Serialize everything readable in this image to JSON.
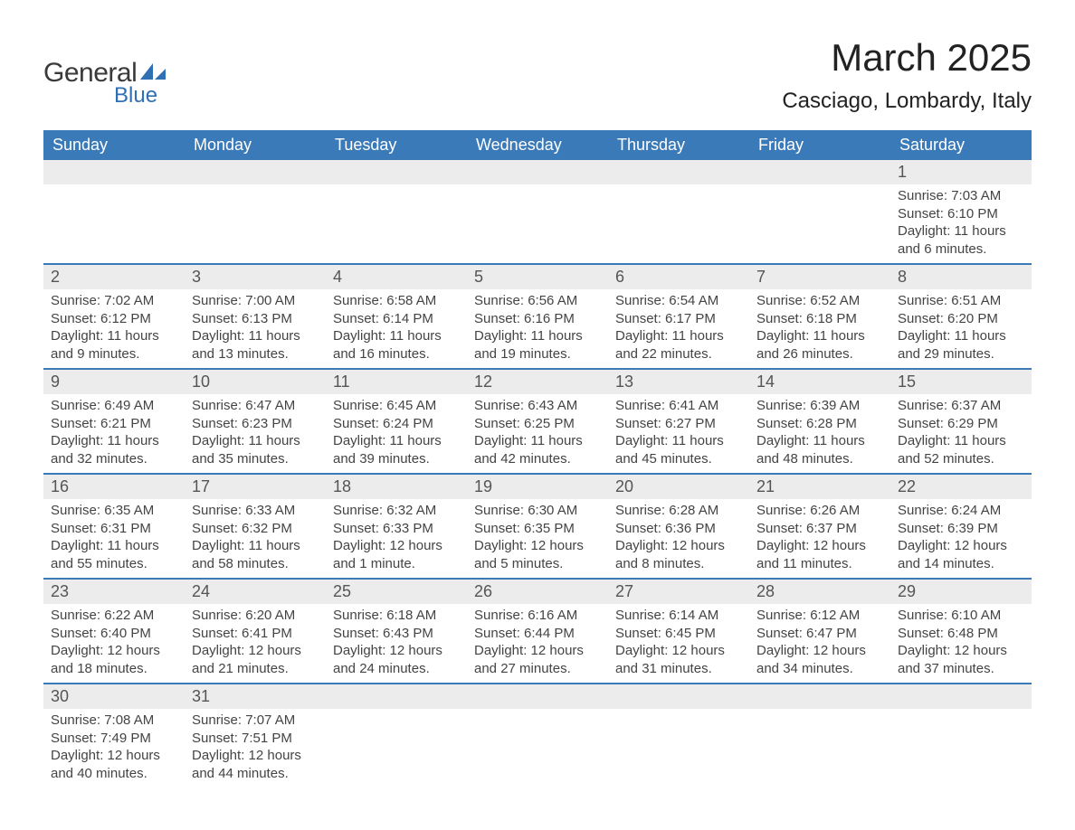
{
  "brand": {
    "line1": "General",
    "line2": "Blue",
    "accent_color": "#2f6fb3"
  },
  "title": "March 2025",
  "location": "Casciago, Lombardy, Italy",
  "header_bg": "#3b7ab8",
  "header_fg": "#ffffff",
  "stripe_bg": "#ececec",
  "border_color": "#3b7ab8",
  "text_color": "#444444",
  "fontsize_title": 42,
  "fontsize_location": 24,
  "fontsize_daynum": 18,
  "fontsize_body": 15,
  "day_names": [
    "Sunday",
    "Monday",
    "Tuesday",
    "Wednesday",
    "Thursday",
    "Friday",
    "Saturday"
  ],
  "weeks": [
    [
      null,
      null,
      null,
      null,
      null,
      null,
      {
        "n": "1",
        "sr": "7:03 AM",
        "ss": "6:10 PM",
        "dl": "11 hours and 6 minutes."
      }
    ],
    [
      {
        "n": "2",
        "sr": "7:02 AM",
        "ss": "6:12 PM",
        "dl": "11 hours and 9 minutes."
      },
      {
        "n": "3",
        "sr": "7:00 AM",
        "ss": "6:13 PM",
        "dl": "11 hours and 13 minutes."
      },
      {
        "n": "4",
        "sr": "6:58 AM",
        "ss": "6:14 PM",
        "dl": "11 hours and 16 minutes."
      },
      {
        "n": "5",
        "sr": "6:56 AM",
        "ss": "6:16 PM",
        "dl": "11 hours and 19 minutes."
      },
      {
        "n": "6",
        "sr": "6:54 AM",
        "ss": "6:17 PM",
        "dl": "11 hours and 22 minutes."
      },
      {
        "n": "7",
        "sr": "6:52 AM",
        "ss": "6:18 PM",
        "dl": "11 hours and 26 minutes."
      },
      {
        "n": "8",
        "sr": "6:51 AM",
        "ss": "6:20 PM",
        "dl": "11 hours and 29 minutes."
      }
    ],
    [
      {
        "n": "9",
        "sr": "6:49 AM",
        "ss": "6:21 PM",
        "dl": "11 hours and 32 minutes."
      },
      {
        "n": "10",
        "sr": "6:47 AM",
        "ss": "6:23 PM",
        "dl": "11 hours and 35 minutes."
      },
      {
        "n": "11",
        "sr": "6:45 AM",
        "ss": "6:24 PM",
        "dl": "11 hours and 39 minutes."
      },
      {
        "n": "12",
        "sr": "6:43 AM",
        "ss": "6:25 PM",
        "dl": "11 hours and 42 minutes."
      },
      {
        "n": "13",
        "sr": "6:41 AM",
        "ss": "6:27 PM",
        "dl": "11 hours and 45 minutes."
      },
      {
        "n": "14",
        "sr": "6:39 AM",
        "ss": "6:28 PM",
        "dl": "11 hours and 48 minutes."
      },
      {
        "n": "15",
        "sr": "6:37 AM",
        "ss": "6:29 PM",
        "dl": "11 hours and 52 minutes."
      }
    ],
    [
      {
        "n": "16",
        "sr": "6:35 AM",
        "ss": "6:31 PM",
        "dl": "11 hours and 55 minutes."
      },
      {
        "n": "17",
        "sr": "6:33 AM",
        "ss": "6:32 PM",
        "dl": "11 hours and 58 minutes."
      },
      {
        "n": "18",
        "sr": "6:32 AM",
        "ss": "6:33 PM",
        "dl": "12 hours and 1 minute."
      },
      {
        "n": "19",
        "sr": "6:30 AM",
        "ss": "6:35 PM",
        "dl": "12 hours and 5 minutes."
      },
      {
        "n": "20",
        "sr": "6:28 AM",
        "ss": "6:36 PM",
        "dl": "12 hours and 8 minutes."
      },
      {
        "n": "21",
        "sr": "6:26 AM",
        "ss": "6:37 PM",
        "dl": "12 hours and 11 minutes."
      },
      {
        "n": "22",
        "sr": "6:24 AM",
        "ss": "6:39 PM",
        "dl": "12 hours and 14 minutes."
      }
    ],
    [
      {
        "n": "23",
        "sr": "6:22 AM",
        "ss": "6:40 PM",
        "dl": "12 hours and 18 minutes."
      },
      {
        "n": "24",
        "sr": "6:20 AM",
        "ss": "6:41 PM",
        "dl": "12 hours and 21 minutes."
      },
      {
        "n": "25",
        "sr": "6:18 AM",
        "ss": "6:43 PM",
        "dl": "12 hours and 24 minutes."
      },
      {
        "n": "26",
        "sr": "6:16 AM",
        "ss": "6:44 PM",
        "dl": "12 hours and 27 minutes."
      },
      {
        "n": "27",
        "sr": "6:14 AM",
        "ss": "6:45 PM",
        "dl": "12 hours and 31 minutes."
      },
      {
        "n": "28",
        "sr": "6:12 AM",
        "ss": "6:47 PM",
        "dl": "12 hours and 34 minutes."
      },
      {
        "n": "29",
        "sr": "6:10 AM",
        "ss": "6:48 PM",
        "dl": "12 hours and 37 minutes."
      }
    ],
    [
      {
        "n": "30",
        "sr": "7:08 AM",
        "ss": "7:49 PM",
        "dl": "12 hours and 40 minutes."
      },
      {
        "n": "31",
        "sr": "7:07 AM",
        "ss": "7:51 PM",
        "dl": "12 hours and 44 minutes."
      },
      null,
      null,
      null,
      null,
      null
    ]
  ],
  "labels": {
    "sunrise": "Sunrise: ",
    "sunset": "Sunset: ",
    "daylight": "Daylight: "
  }
}
